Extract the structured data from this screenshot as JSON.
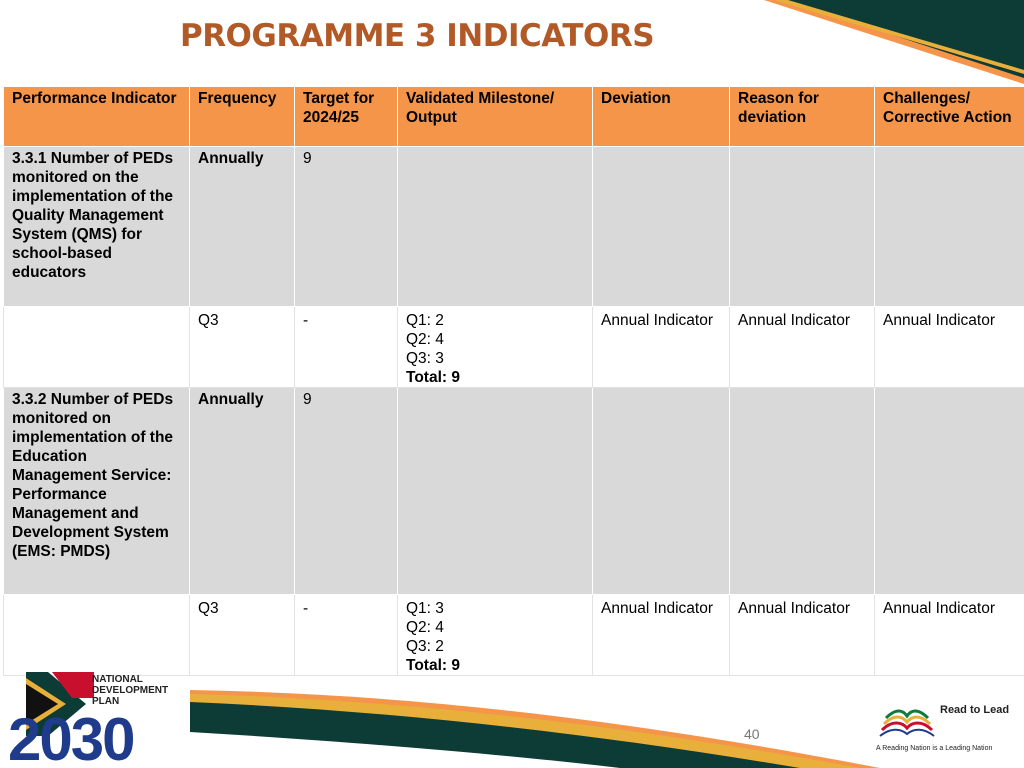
{
  "slide": {
    "title": "PROGRAMME 3 INDICATORS",
    "page_number": "40"
  },
  "table": {
    "headers": [
      "Performance Indicator",
      "Frequency",
      "Target for 2024/25",
      "Validated Milestone/ Output",
      "Deviation",
      "Reason for deviation",
      "Challenges/ Corrective Action"
    ],
    "indicators": [
      {
        "name": "3.3.1 Number of PEDs monitored on the implementation of the Quality Management System (QMS) for school-based educators",
        "frequency": "Annually",
        "target": "9",
        "quarter": {
          "label": "Q3",
          "target": "-",
          "milestones": [
            "Q1: 2",
            "Q2: 4",
            "Q3: 3"
          ],
          "total": "Total: 9",
          "deviation": "Annual Indicator",
          "reason": "Annual Indicator",
          "challenges": "Annual Indicator"
        }
      },
      {
        "name": "3.3.2 Number of PEDs monitored on implementation of the Education Management Service: Performance Management and Development System (EMS: PMDS)",
        "frequency": "Annually",
        "target": "9",
        "quarter": {
          "label": "Q3",
          "target": "-",
          "milestones": [
            "Q1: 3",
            "Q2: 4",
            "Q3: 2"
          ],
          "total": "Total: 9",
          "deviation": "Annual Indicator",
          "reason": "Annual Indicator",
          "challenges": "Annual Indicator"
        }
      }
    ]
  },
  "logos": {
    "ndp": {
      "line1": "NATIONAL",
      "line2": "DEVELOPMENT",
      "line3": "PLAN",
      "year": "2030"
    },
    "read_to_lead": {
      "title": "Read to Lead",
      "tagline": "A Reading Nation is a Leading Nation"
    }
  },
  "colors": {
    "header_orange": "#f4954a",
    "title_brown": "#b15a27",
    "row_grey": "#d9d9d9",
    "dark_green": "#0d3b36",
    "logo_blue": "#1f3c8c"
  }
}
